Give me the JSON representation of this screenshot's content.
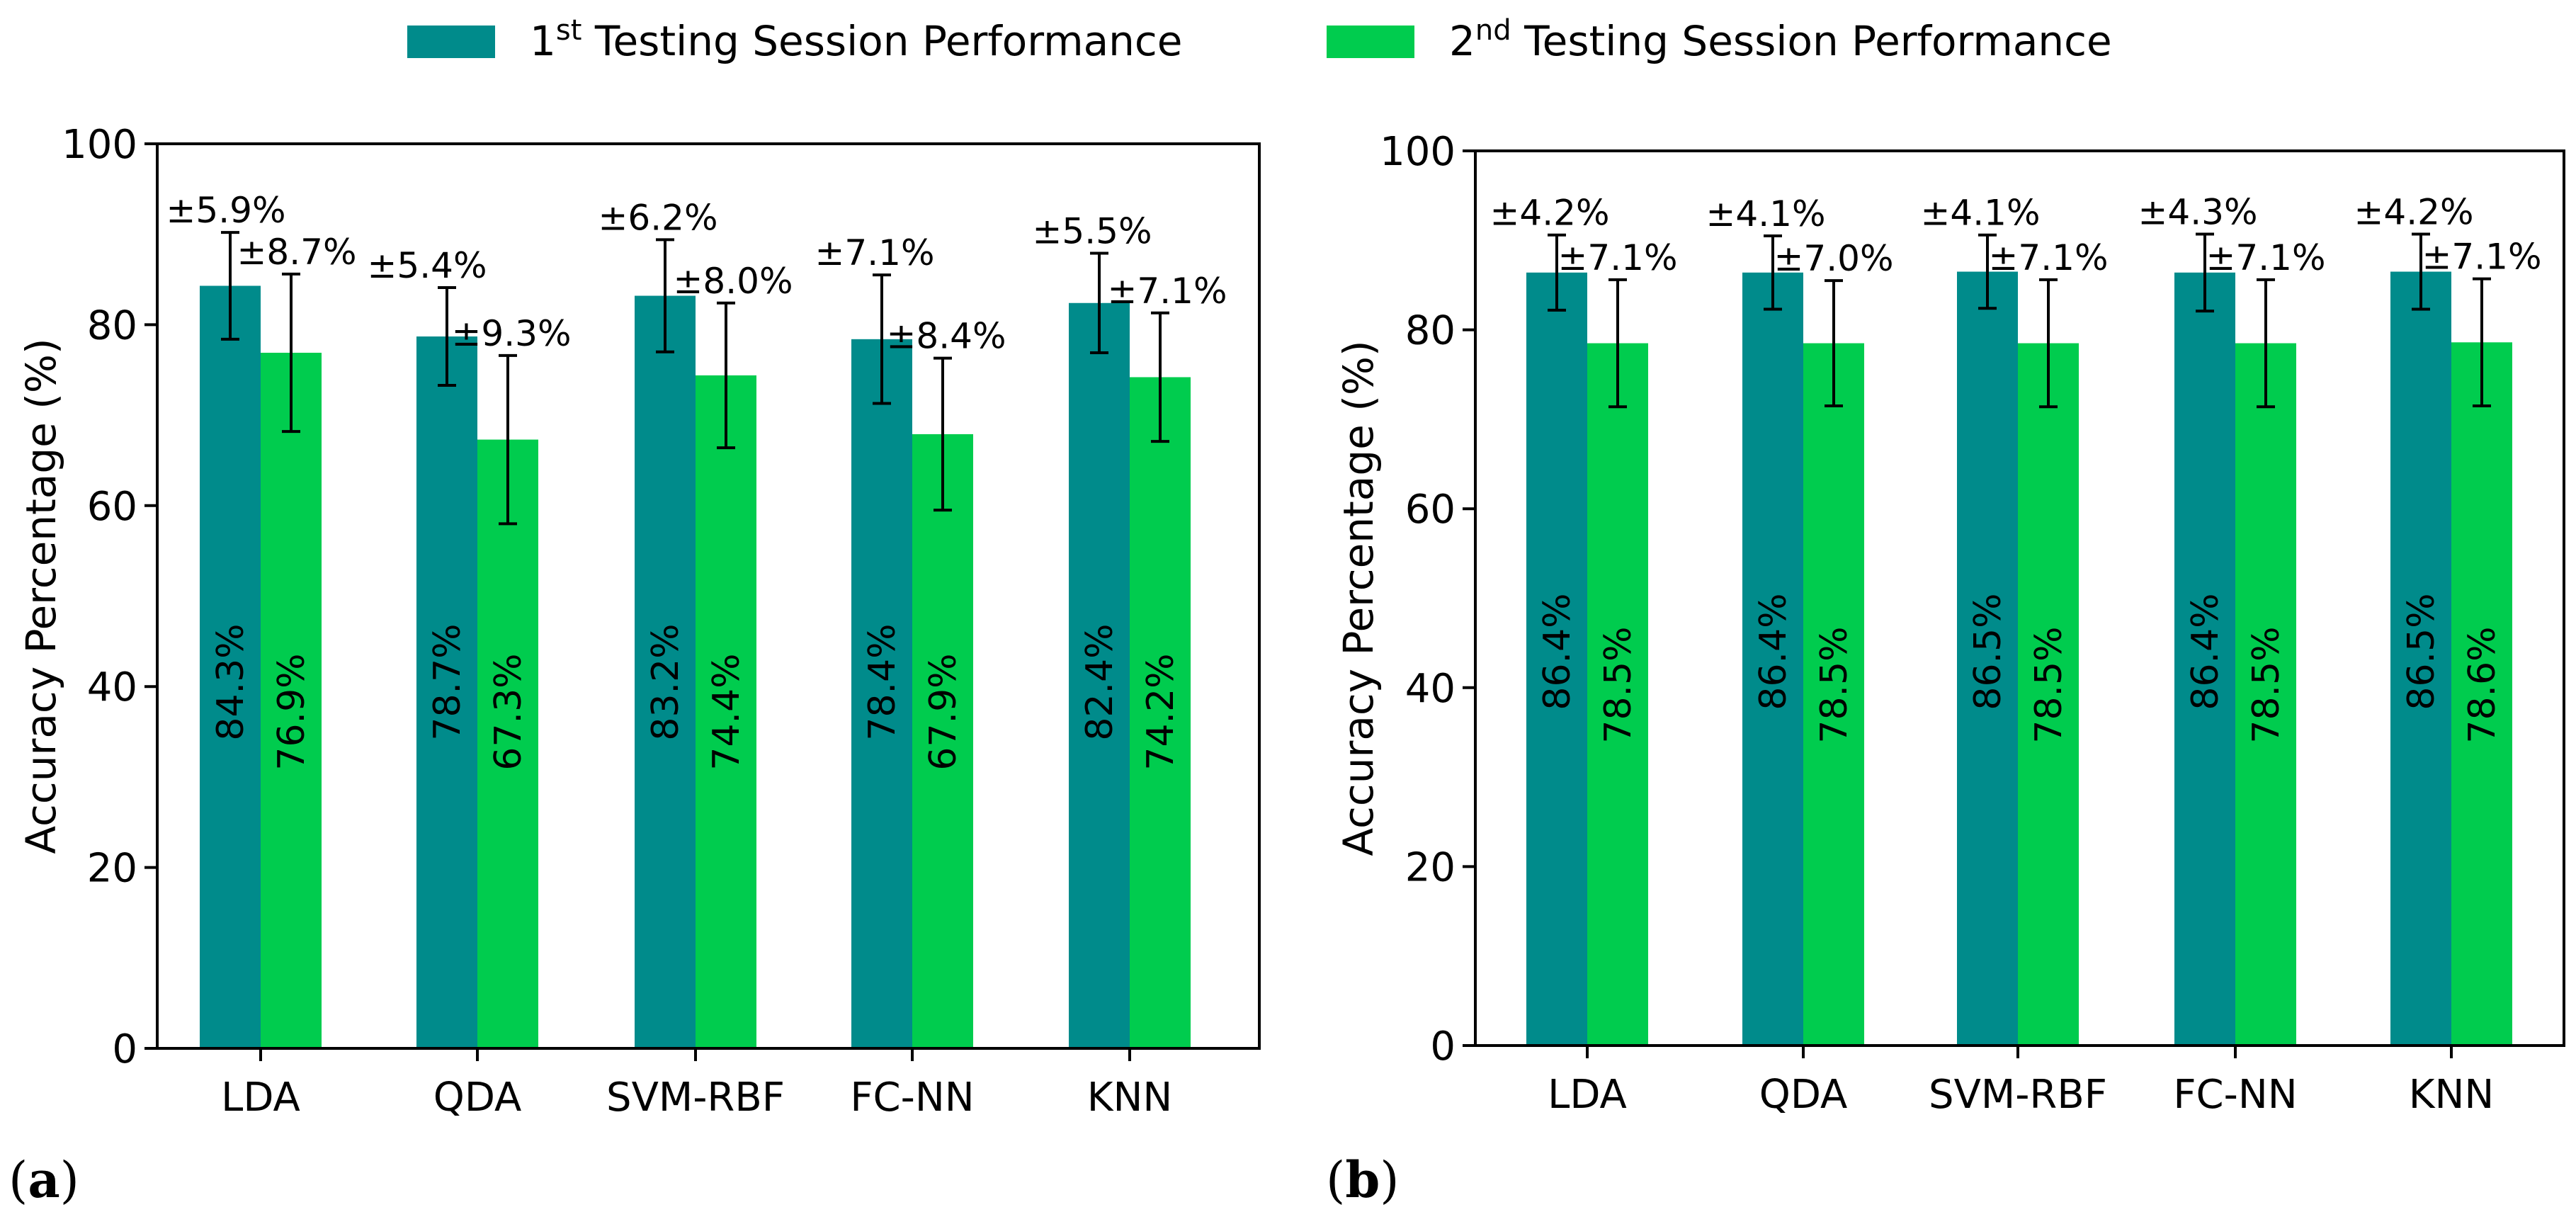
{
  "legend": {
    "series": [
      {
        "prefix": "1",
        "sup": "st",
        "suffix": " Testing Session Performance",
        "color": "#008b8b"
      },
      {
        "prefix": "2",
        "sup": "nd",
        "suffix": " Testing Session Performance",
        "color": "#00cc4e"
      }
    ]
  },
  "chart_data": [
    {
      "type": "bar",
      "panel_label": "(a)",
      "ylabel": "Accuracy Percentage (%)",
      "ylim": [
        0,
        100
      ],
      "yticks": [
        0,
        20,
        40,
        60,
        80,
        100
      ],
      "categories": [
        "LDA",
        "QDA",
        "SVM-RBF",
        "FC-NN",
        "KNN"
      ],
      "series": [
        {
          "name": "1st Testing Session Performance",
          "values": [
            84.3,
            78.7,
            83.2,
            78.4,
            82.4
          ],
          "value_labels": [
            "84.3%",
            "78.7%",
            "83.2%",
            "78.4%",
            "82.4%"
          ],
          "errors": [
            5.9,
            5.4,
            6.2,
            7.1,
            5.5
          ],
          "error_labels": [
            "±5.9%",
            "±5.4%",
            "±6.2%",
            "±7.1%",
            "±5.5%"
          ]
        },
        {
          "name": "2nd Testing Session Performance",
          "values": [
            76.9,
            67.3,
            74.4,
            67.9,
            74.2
          ],
          "value_labels": [
            "76.9%",
            "67.3%",
            "74.4%",
            "67.9%",
            "74.2%"
          ],
          "errors": [
            8.7,
            9.3,
            8.0,
            8.4,
            7.1
          ],
          "error_labels": [
            "±8.7%",
            "±9.3%",
            "±8.0%",
            "±8.4%",
            "±7.1%"
          ]
        }
      ]
    },
    {
      "type": "bar",
      "panel_label": "(b)",
      "ylabel": "Accuracy Percentage (%)",
      "ylim": [
        0,
        100
      ],
      "yticks": [
        0,
        20,
        40,
        60,
        80,
        100
      ],
      "categories": [
        "LDA",
        "QDA",
        "SVM-RBF",
        "FC-NN",
        "KNN"
      ],
      "series": [
        {
          "name": "1st Testing Session Performance",
          "values": [
            86.4,
            86.4,
            86.5,
            86.4,
            86.5
          ],
          "value_labels": [
            "86.4%",
            "86.4%",
            "86.5%",
            "86.4%",
            "86.5%"
          ],
          "errors": [
            4.2,
            4.1,
            4.1,
            4.3,
            4.2
          ],
          "error_labels": [
            "±4.2%",
            "±4.1%",
            "±4.1%",
            "±4.3%",
            "±4.2%"
          ]
        },
        {
          "name": "2nd Testing Session Performance",
          "values": [
            78.5,
            78.5,
            78.5,
            78.5,
            78.6
          ],
          "value_labels": [
            "78.5%",
            "78.5%",
            "78.5%",
            "78.5%",
            "78.6%"
          ],
          "errors": [
            7.1,
            7.0,
            7.1,
            7.1,
            7.1
          ],
          "error_labels": [
            "±7.1%",
            "±7.0%",
            "±7.1%",
            "±7.1%",
            "±7.1%"
          ]
        }
      ]
    }
  ]
}
